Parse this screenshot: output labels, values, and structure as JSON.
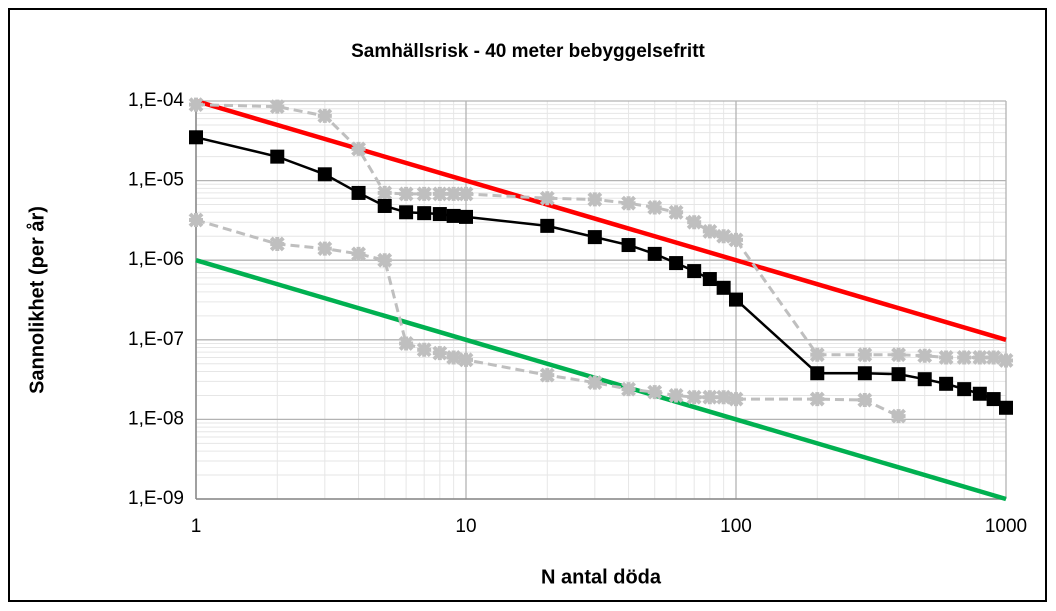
{
  "chart_data": {
    "type": "line",
    "title": "Samhällsrisk - 40 meter bebyggelsefritt",
    "x_label": "N antal döda",
    "y_label": "Sannolikhet (per år)",
    "xscale": "log",
    "yscale": "log",
    "grid": true,
    "minor_grid": true,
    "xlim": [
      1,
      1000
    ],
    "ylim": [
      1e-09,
      0.0001
    ],
    "xticks": [
      1,
      10,
      100,
      1000
    ],
    "yticks": [
      {
        "value": 1e-09,
        "label": "1,E-09"
      },
      {
        "value": 1e-08,
        "label": "1,E-08"
      },
      {
        "value": 1e-07,
        "label": "1,E-07"
      },
      {
        "value": 1e-06,
        "label": "1,E-06"
      },
      {
        "value": 1e-05,
        "label": "1,E-05"
      },
      {
        "value": 0.0001,
        "label": "1,E-04"
      }
    ],
    "series": [
      {
        "color": "#ff0000",
        "style": "solid",
        "marker": "none",
        "x": [
          1,
          1000
        ],
        "values": [
          0.0001,
          1e-07
        ]
      },
      {
        "color": "#00b050",
        "style": "solid",
        "marker": "none",
        "x": [
          1,
          1000
        ],
        "values": [
          1e-06,
          1e-09
        ]
      },
      {
        "color": "#bfbfbf",
        "style": "dashed",
        "marker": "star",
        "x": [
          1,
          2,
          3,
          4,
          5,
          6,
          7,
          8,
          9,
          10,
          20,
          30,
          40,
          50,
          60,
          70,
          80,
          90,
          100,
          200,
          300,
          400,
          500,
          600,
          700,
          800,
          900,
          1000
        ],
        "values": [
          9e-05,
          8.5e-05,
          6.5e-05,
          2.5e-05,
          7e-06,
          6.8e-06,
          6.8e-06,
          6.8e-06,
          6.8e-06,
          6.8e-06,
          6e-06,
          5.8e-06,
          5.2e-06,
          4.6e-06,
          4e-06,
          3e-06,
          2.3e-06,
          2e-06,
          1.8e-06,
          6.5e-08,
          6.5e-08,
          6.5e-08,
          6.3e-08,
          6e-08,
          6e-08,
          6e-08,
          6e-08,
          5.5e-08
        ]
      },
      {
        "color": "#bfbfbf",
        "style": "dashed",
        "marker": "star",
        "x": [
          1,
          2,
          3,
          4,
          5,
          6,
          7,
          8,
          9,
          10,
          20,
          30,
          40,
          50,
          60,
          70,
          80,
          90,
          100,
          200,
          300,
          400
        ],
        "values": [
          3.2e-06,
          1.6e-06,
          1.4e-06,
          1.2e-06,
          1e-06,
          9e-08,
          7.5e-08,
          6.8e-08,
          6e-08,
          5.6e-08,
          3.6e-08,
          2.9e-08,
          2.4e-08,
          2.2e-08,
          2e-08,
          1.9e-08,
          1.9e-08,
          1.9e-08,
          1.8e-08,
          1.8e-08,
          1.75e-08,
          1.1e-08
        ]
      },
      {
        "color": "#000000",
        "style": "solid",
        "marker": "square",
        "x": [
          1,
          2,
          3,
          4,
          5,
          6,
          7,
          8,
          9,
          10,
          20,
          30,
          40,
          50,
          60,
          70,
          80,
          90,
          100,
          200,
          300,
          400,
          500,
          600,
          700,
          800,
          900,
          1000
        ],
        "values": [
          3.5e-05,
          2e-05,
          1.2e-05,
          7e-06,
          4.8e-06,
          4e-06,
          3.9e-06,
          3.8e-06,
          3.6e-06,
          3.5e-06,
          2.7e-06,
          1.95e-06,
          1.55e-06,
          1.2e-06,
          9.2e-07,
          7.3e-07,
          5.8e-07,
          4.5e-07,
          3.2e-07,
          3.8e-08,
          3.8e-08,
          3.7e-08,
          3.2e-08,
          2.8e-08,
          2.4e-08,
          2.1e-08,
          1.8e-08,
          1.4e-08
        ]
      }
    ]
  }
}
